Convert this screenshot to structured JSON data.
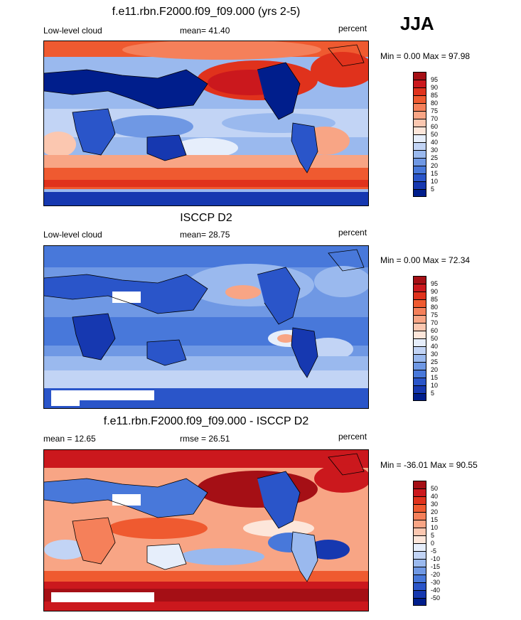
{
  "season": "JJA",
  "panels": [
    {
      "title": "f.e11.rbn.F2000.f09_f09.000 (yrs 2-5)",
      "left_label": "Low-level cloud",
      "center_label": "mean=  41.40",
      "right_label": "percent",
      "minmax": "Min =   0.00 Max =  97.98",
      "legend": {
        "labels": [
          "95",
          "90",
          "85",
          "80",
          "75",
          "70",
          "60",
          "50",
          "40",
          "30",
          "25",
          "20",
          "15",
          "10",
          "5"
        ],
        "colors": [
          "#a50f15",
          "#cb181d",
          "#e0321c",
          "#ef5a30",
          "#f5805a",
          "#f8a585",
          "#fbc7b0",
          "#fde6da",
          "#e6eefb",
          "#c2d4f5",
          "#9ab9ee",
          "#6f98e4",
          "#4878da",
          "#2a55c9",
          "#1638b0",
          "#001e8c"
        ]
      }
    },
    {
      "title": "ISCCP D2",
      "left_label": "Low-level cloud",
      "center_label": "mean=  28.75",
      "right_label": "percent",
      "minmax": "Min =   0.00 Max =  72.34",
      "legend": {
        "labels": [
          "95",
          "90",
          "85",
          "80",
          "75",
          "70",
          "60",
          "50",
          "40",
          "30",
          "25",
          "20",
          "15",
          "10",
          "5"
        ],
        "colors": [
          "#a50f15",
          "#cb181d",
          "#e0321c",
          "#ef5a30",
          "#f5805a",
          "#f8a585",
          "#fbc7b0",
          "#fde6da",
          "#e6eefb",
          "#c2d4f5",
          "#9ab9ee",
          "#6f98e4",
          "#4878da",
          "#2a55c9",
          "#1638b0",
          "#001e8c"
        ]
      }
    },
    {
      "title": "f.e11.rbn.F2000.f09_f09.000 - ISCCP D2",
      "left_label": "mean =  12.65",
      "center_label": "rmse =  26.51",
      "right_label": "percent",
      "minmax": "Min = -36.01 Max =  90.55",
      "legend": {
        "labels": [
          "50",
          "40",
          "30",
          "20",
          "15",
          "10",
          "5",
          "0",
          "-5",
          "-10",
          "-15",
          "-20",
          "-30",
          "-40",
          "-50"
        ],
        "colors": [
          "#a50f15",
          "#cb181d",
          "#e0321c",
          "#ef5a30",
          "#f5805a",
          "#f8a585",
          "#fbc7b0",
          "#fde6da",
          "#e6eefb",
          "#c2d4f5",
          "#9ab9ee",
          "#6f98e4",
          "#4878da",
          "#2a55c9",
          "#1638b0",
          "#001e8c"
        ]
      }
    }
  ]
}
